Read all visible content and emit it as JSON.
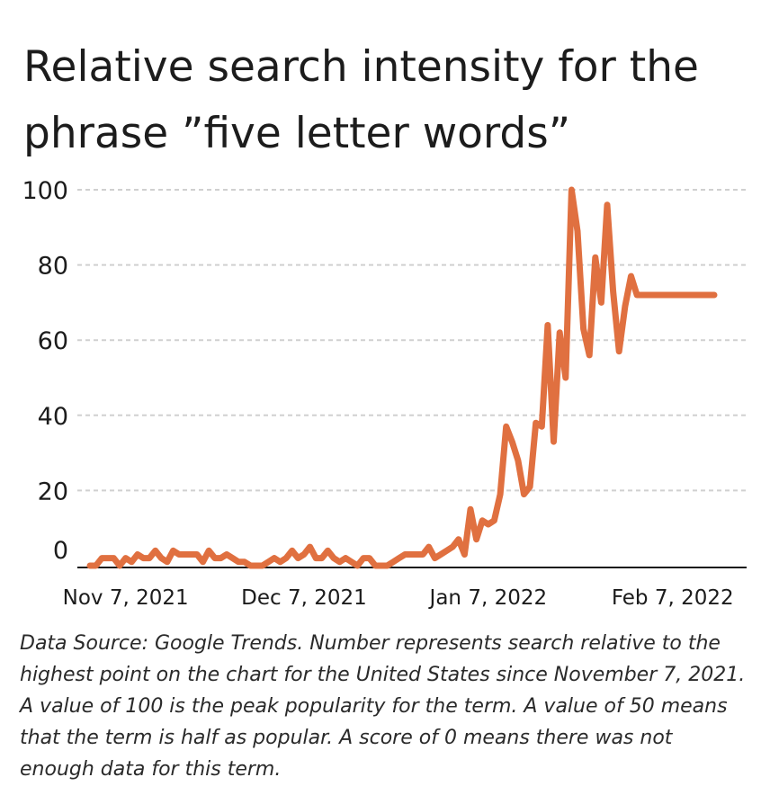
{
  "title": "Relative search intensity for the phrase ”five letter words”",
  "note": "Data Source: Google Trends. Number represents search relative to the highest point on the chart for the United States since November 7, 2021. A value of 100 is the peak popularity for the term. A value of 50 means that the term is half as popular. A score of 0 means there was not enough data for this term.",
  "chart_data": {
    "type": "line",
    "title": "Relative search intensity for the phrase ”five letter words”",
    "xlabel": "",
    "ylabel": "",
    "ylim": [
      0,
      100
    ],
    "yticks": [
      0,
      20,
      40,
      60,
      80,
      100
    ],
    "xticks": [
      {
        "date": "2021-11-07",
        "label": "Nov 7, 2021"
      },
      {
        "date": "2021-12-07",
        "label": "Dec 7, 2021"
      },
      {
        "date": "2022-01-07",
        "label": "Jan 7, 2022"
      },
      {
        "date": "2022-02-07",
        "label": "Feb 7, 2022"
      }
    ],
    "grid": true,
    "line_color": "#e07040",
    "x": [
      "2021-11-01",
      "2021-11-02",
      "2021-11-03",
      "2021-11-04",
      "2021-11-05",
      "2021-11-06",
      "2021-11-07",
      "2021-11-08",
      "2021-11-09",
      "2021-11-10",
      "2021-11-11",
      "2021-11-12",
      "2021-11-13",
      "2021-11-14",
      "2021-11-15",
      "2021-11-16",
      "2021-11-17",
      "2021-11-18",
      "2021-11-19",
      "2021-11-20",
      "2021-11-21",
      "2021-11-22",
      "2021-11-23",
      "2021-11-24",
      "2021-11-25",
      "2021-11-26",
      "2021-11-27",
      "2021-11-28",
      "2021-11-29",
      "2021-11-30",
      "2021-12-01",
      "2021-12-02",
      "2021-12-03",
      "2021-12-04",
      "2021-12-05",
      "2021-12-06",
      "2021-12-07",
      "2021-12-08",
      "2021-12-09",
      "2021-12-10",
      "2021-12-11",
      "2021-12-12",
      "2021-12-13",
      "2021-12-14",
      "2021-12-15",
      "2021-12-16",
      "2021-12-17",
      "2021-12-18",
      "2021-12-19",
      "2021-12-20",
      "2021-12-21",
      "2021-12-22",
      "2021-12-23",
      "2021-12-24",
      "2021-12-25",
      "2021-12-26",
      "2021-12-27",
      "2021-12-28",
      "2021-12-29",
      "2021-12-30",
      "2021-12-31",
      "2022-01-01",
      "2022-01-02",
      "2022-01-03",
      "2022-01-04",
      "2022-01-05",
      "2022-01-06",
      "2022-01-07",
      "2022-01-08",
      "2022-01-09",
      "2022-01-10",
      "2022-01-11",
      "2022-01-12",
      "2022-01-13",
      "2022-01-14",
      "2022-01-15",
      "2022-01-16",
      "2022-01-17",
      "2022-01-18",
      "2022-01-19",
      "2022-01-20",
      "2022-01-21",
      "2022-01-22",
      "2022-01-23",
      "2022-01-24",
      "2022-01-25",
      "2022-01-26",
      "2022-01-27",
      "2022-01-28",
      "2022-01-29",
      "2022-01-30",
      "2022-01-31",
      "2022-02-01",
      "2022-02-02",
      "2022-02-03",
      "2022-02-04",
      "2022-02-05",
      "2022-02-06",
      "2022-02-07",
      "2022-02-08",
      "2022-02-09",
      "2022-02-10",
      "2022-02-11",
      "2022-02-12",
      "2022-02-13",
      "2022-02-14"
    ],
    "series": [
      {
        "values": [
          0,
          0,
          2,
          2,
          2,
          0,
          2,
          1,
          3,
          2,
          2,
          4,
          2,
          1,
          4,
          3,
          3,
          3,
          3,
          1,
          4,
          2,
          2,
          3,
          2,
          1,
          1,
          0,
          0,
          0,
          1,
          2,
          1,
          2,
          4,
          2,
          3,
          5,
          2,
          2,
          4,
          2,
          1,
          2,
          1,
          0,
          2,
          2,
          0,
          0,
          0,
          1,
          2,
          3,
          3,
          3,
          3,
          5,
          2,
          3,
          4,
          5,
          7,
          3,
          15,
          7,
          12,
          11,
          12,
          19,
          37,
          33,
          28,
          19,
          21,
          38,
          37,
          64,
          33,
          62,
          50,
          100,
          89,
          63,
          56,
          82,
          70,
          96,
          73,
          57,
          69,
          77,
          72,
          72,
          72,
          72,
          72,
          72,
          72,
          72,
          72,
          72,
          72,
          72,
          72,
          72
        ]
      }
    ]
  }
}
